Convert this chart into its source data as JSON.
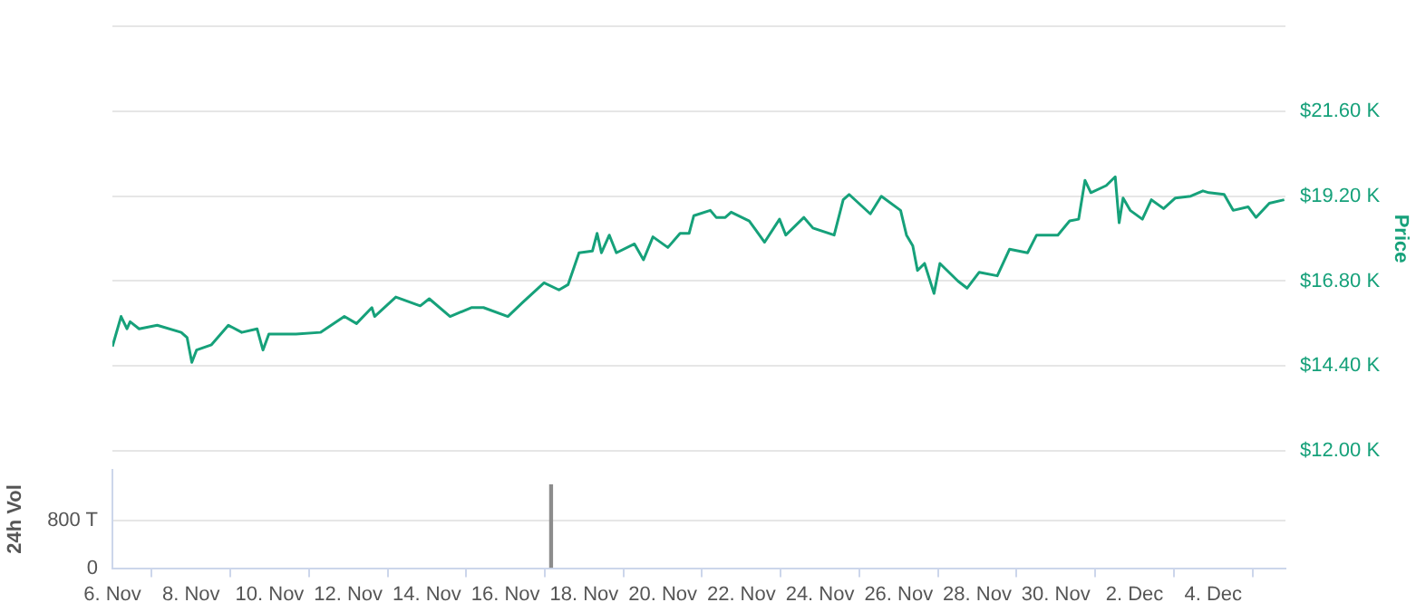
{
  "chart_data": [
    {
      "type": "line",
      "ylabel": "Price",
      "grid": "y",
      "tick_labels": "y",
      "xlim": [
        "--11-06",
        "--12-05T20:10"
      ],
      "ylim": [
        12000,
        24000
      ],
      "yticks": [
        {
          "value": 12000,
          "label": "$12.00 K"
        },
        {
          "value": 14400,
          "label": "$14.40 K"
        },
        {
          "value": 16800,
          "label": "$16.80 K"
        },
        {
          "value": 19200,
          "label": "$19.20 K"
        },
        {
          "value": 21600,
          "label": "$21.60 K"
        },
        {
          "value": 24000,
          "label": null
        }
      ],
      "series": [
        {
          "color": "#16a17a",
          "x": [
            "--11-06T00:00",
            "--11-06T05:17",
            "--11-06T08:53",
            "--11-06T10:48",
            "--11-06T16:19",
            "--11-07T03:22",
            "--11-07T18:00",
            "--11-07T21:36",
            "--11-08T00:29",
            "--11-08T03:22",
            "--11-08T12:29",
            "--11-08T22:48",
            "--11-09T06:58",
            "--11-09T16:19",
            "--11-09T19:55",
            "--11-09T23:31",
            "--11-10T16:05",
            "--11-11T06:58",
            "--11-11T21:36",
            "--11-12T05:02",
            "--11-12T14:24",
            "--11-12T16:05",
            "--11-13T05:02",
            "--11-13T19:55",
            "--11-14T01:26",
            "--11-14T14:10",
            "--11-15T03:07",
            "--11-15T10:34",
            "--11-16T01:26",
            "--11-16T10:34",
            "--11-16T19:55",
            "--11-16T23:31",
            "--11-17T08:38",
            "--11-17T14:10",
            "--11-17T20:53",
            "--11-18T05:02",
            "--11-18T07:55",
            "--11-18T10:34",
            "--11-18T15:22",
            "--11-18T19:41",
            "--11-19T06:43",
            "--11-19T12:14",
            "--11-19T18:00",
            "--11-20T03:07",
            "--11-20T10:34",
            "--11-20T16:05",
            "--11-20T18:58",
            "--11-21T05:02",
            "--11-21T08:38",
            "--11-21T14:10",
            "--11-21T17:46",
            "--11-22T04:48",
            "--11-22T14:10",
            "--11-22T23:17",
            "--11-23T03:07",
            "--11-23T14:10",
            "--11-23T19:41",
            "--11-24T08:38",
            "--11-24T14:10",
            "--11-24T17:46",
            "--11-25T06:43",
            "--11-25T13:26",
            "--11-26T01:12",
            "--11-26T04:48",
            "--11-26T08:38",
            "--11-26T11:31",
            "--11-26T15:50",
            "--11-26T21:36",
            "--11-27T01:12",
            "--11-27T12:14",
            "--11-27T17:46",
            "--11-28T01:12",
            "--11-28T12:14",
            "--11-28T19:41",
            "--11-29T06:43",
            "--11-29T12:14",
            "--11-30T01:12",
            "--11-30T08:24",
            "--11-30T13:55",
            "--11-30T17:46",
            "--11-30T21:22",
            "--12-01T06:43",
            "--12-01T12:14",
            "--12-01T14:38",
            "--12-01T17:02",
            "--12-01T21:22",
            "--12-02T04:48",
            "--12-02T10:19",
            "--12-02T17:46",
            "--12-03T00:58",
            "--12-03T10:19",
            "--12-03T17:46",
            "--12-03T21:22",
            "--12-04T06:43",
            "--12-04T12:14",
            "--12-04T21:22",
            "--12-05T02:10",
            "--12-05T10:19",
            "--12-05T19:26"
          ],
          "values": [
            14950,
            15800,
            15450,
            15650,
            15450,
            15550,
            15350,
            15200,
            14500,
            14850,
            15000,
            15550,
            15350,
            15450,
            14850,
            15300,
            15300,
            15350,
            15800,
            15600,
            16050,
            15800,
            16350,
            16100,
            16300,
            15800,
            16050,
            16050,
            15800,
            16200,
            16600,
            16750,
            16550,
            16700,
            17600,
            17650,
            18150,
            17600,
            18100,
            17600,
            17850,
            17400,
            18050,
            17750,
            18150,
            18150,
            18650,
            18800,
            18600,
            18600,
            18750,
            18500,
            17900,
            18550,
            18100,
            18600,
            18300,
            18100,
            19100,
            19250,
            18700,
            19200,
            18800,
            18100,
            17800,
            17100,
            17300,
            16450,
            17300,
            16800,
            16600,
            17050,
            16950,
            17700,
            17600,
            18100,
            18100,
            18500,
            18550,
            19650,
            19300,
            19500,
            19750,
            18450,
            19150,
            18800,
            18550,
            19100,
            18850,
            19150,
            19200,
            19350,
            19300,
            19250,
            18800,
            18900,
            18600,
            19000,
            19100
          ]
        }
      ]
    },
    {
      "type": "bar",
      "ylabel": "24h Vol",
      "grid": "y",
      "xlim": [
        "--11-06",
        "--12-05T20:10"
      ],
      "ylim": [
        0,
        1650
      ],
      "xticks": [
        {
          "value": "--11-06",
          "label": "6. Nov"
        },
        {
          "value": "--11-08",
          "label": "8. Nov"
        },
        {
          "value": "--11-10",
          "label": "10. Nov"
        },
        {
          "value": "--11-12",
          "label": "12. Nov"
        },
        {
          "value": "--11-14",
          "label": "14. Nov"
        },
        {
          "value": "--11-16",
          "label": "16. Nov"
        },
        {
          "value": "--11-18",
          "label": "18. Nov"
        },
        {
          "value": "--11-20",
          "label": "20. Nov"
        },
        {
          "value": "--11-22",
          "label": "22. Nov"
        },
        {
          "value": "--11-24",
          "label": "24. Nov"
        },
        {
          "value": "--11-26",
          "label": "26. Nov"
        },
        {
          "value": "--11-28",
          "label": "28. Nov"
        },
        {
          "value": "--11-30",
          "label": "30. Nov"
        },
        {
          "value": "--12-02",
          "label": "2. Dec"
        },
        {
          "value": "--12-04",
          "label": "4. Dec"
        }
      ],
      "yticks": [
        0,
        {
          "value": 800,
          "label": "800 T"
        }
      ],
      "series": [
        {
          "color": "#8c8c8c",
          "x": [
            "--11-17T03:50"
          ],
          "values": [
            1400
          ]
        }
      ]
    }
  ]
}
